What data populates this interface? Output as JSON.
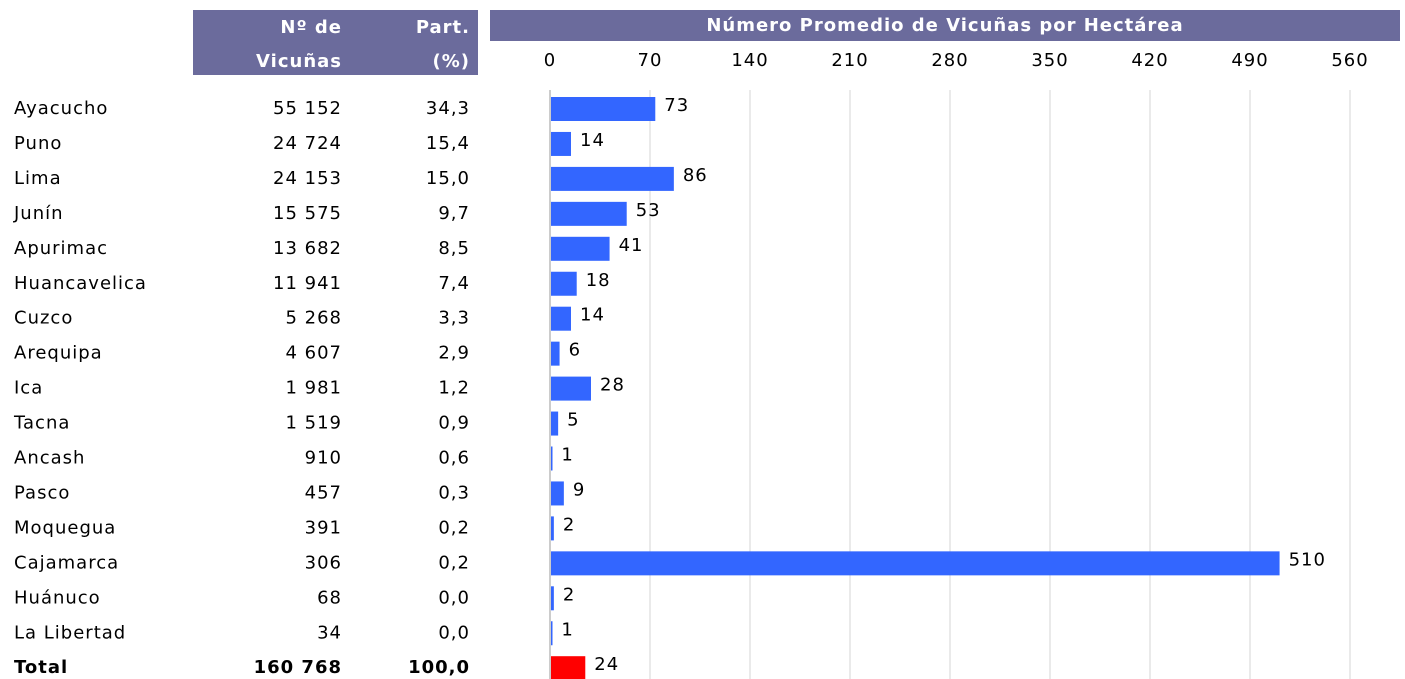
{
  "table": {
    "headers": [
      [
        "Nº de",
        "Vicuñas"
      ],
      [
        "Part.",
        "(%)"
      ]
    ],
    "count": [
      "55 152",
      "24 724",
      "24 153",
      "15 575",
      "13 682",
      "11 941",
      "5 268",
      "4 607",
      "1 981",
      "1 519",
      "910",
      "457",
      "391",
      "306",
      "68",
      "34",
      "160 768"
    ],
    "share": [
      "34,3",
      "15,4",
      "15,0",
      "9,7",
      "8,5",
      "7,4",
      "3,3",
      "2,9",
      "1,2",
      "0,9",
      "0,6",
      "0,3",
      "0,2",
      "0,2",
      "0,0",
      "0,0",
      "100,0"
    ]
  },
  "chart_data": {
    "type": "bar",
    "orientation": "horizontal",
    "title": "Número Promedio de Vicuñas por Hectárea",
    "categories": [
      "Ayacucho",
      "Puno",
      "Lima",
      "Junín",
      "Apurimac",
      "Huancavelica",
      "Cuzco",
      "Arequipa",
      "Ica",
      "Tacna",
      "Ancash",
      "Pasco",
      "Moquegua",
      "Cajamarca",
      "Huánuco",
      "La Libertad",
      "Total"
    ],
    "values": [
      73,
      14,
      86,
      53,
      41,
      18,
      14,
      6,
      28,
      5,
      1,
      9,
      2,
      510,
      2,
      1,
      24
    ],
    "colors": [
      "#3366ff",
      "#3366ff",
      "#3366ff",
      "#3366ff",
      "#3366ff",
      "#3366ff",
      "#3366ff",
      "#3366ff",
      "#3366ff",
      "#3366ff",
      "#3366ff",
      "#3366ff",
      "#3366ff",
      "#3366ff",
      "#3366ff",
      "#3366ff",
      "#ff0000"
    ],
    "xlim": [
      0,
      588
    ],
    "xticks": [
      0,
      70,
      140,
      210,
      280,
      350,
      420,
      490,
      560
    ],
    "grid": true
  }
}
